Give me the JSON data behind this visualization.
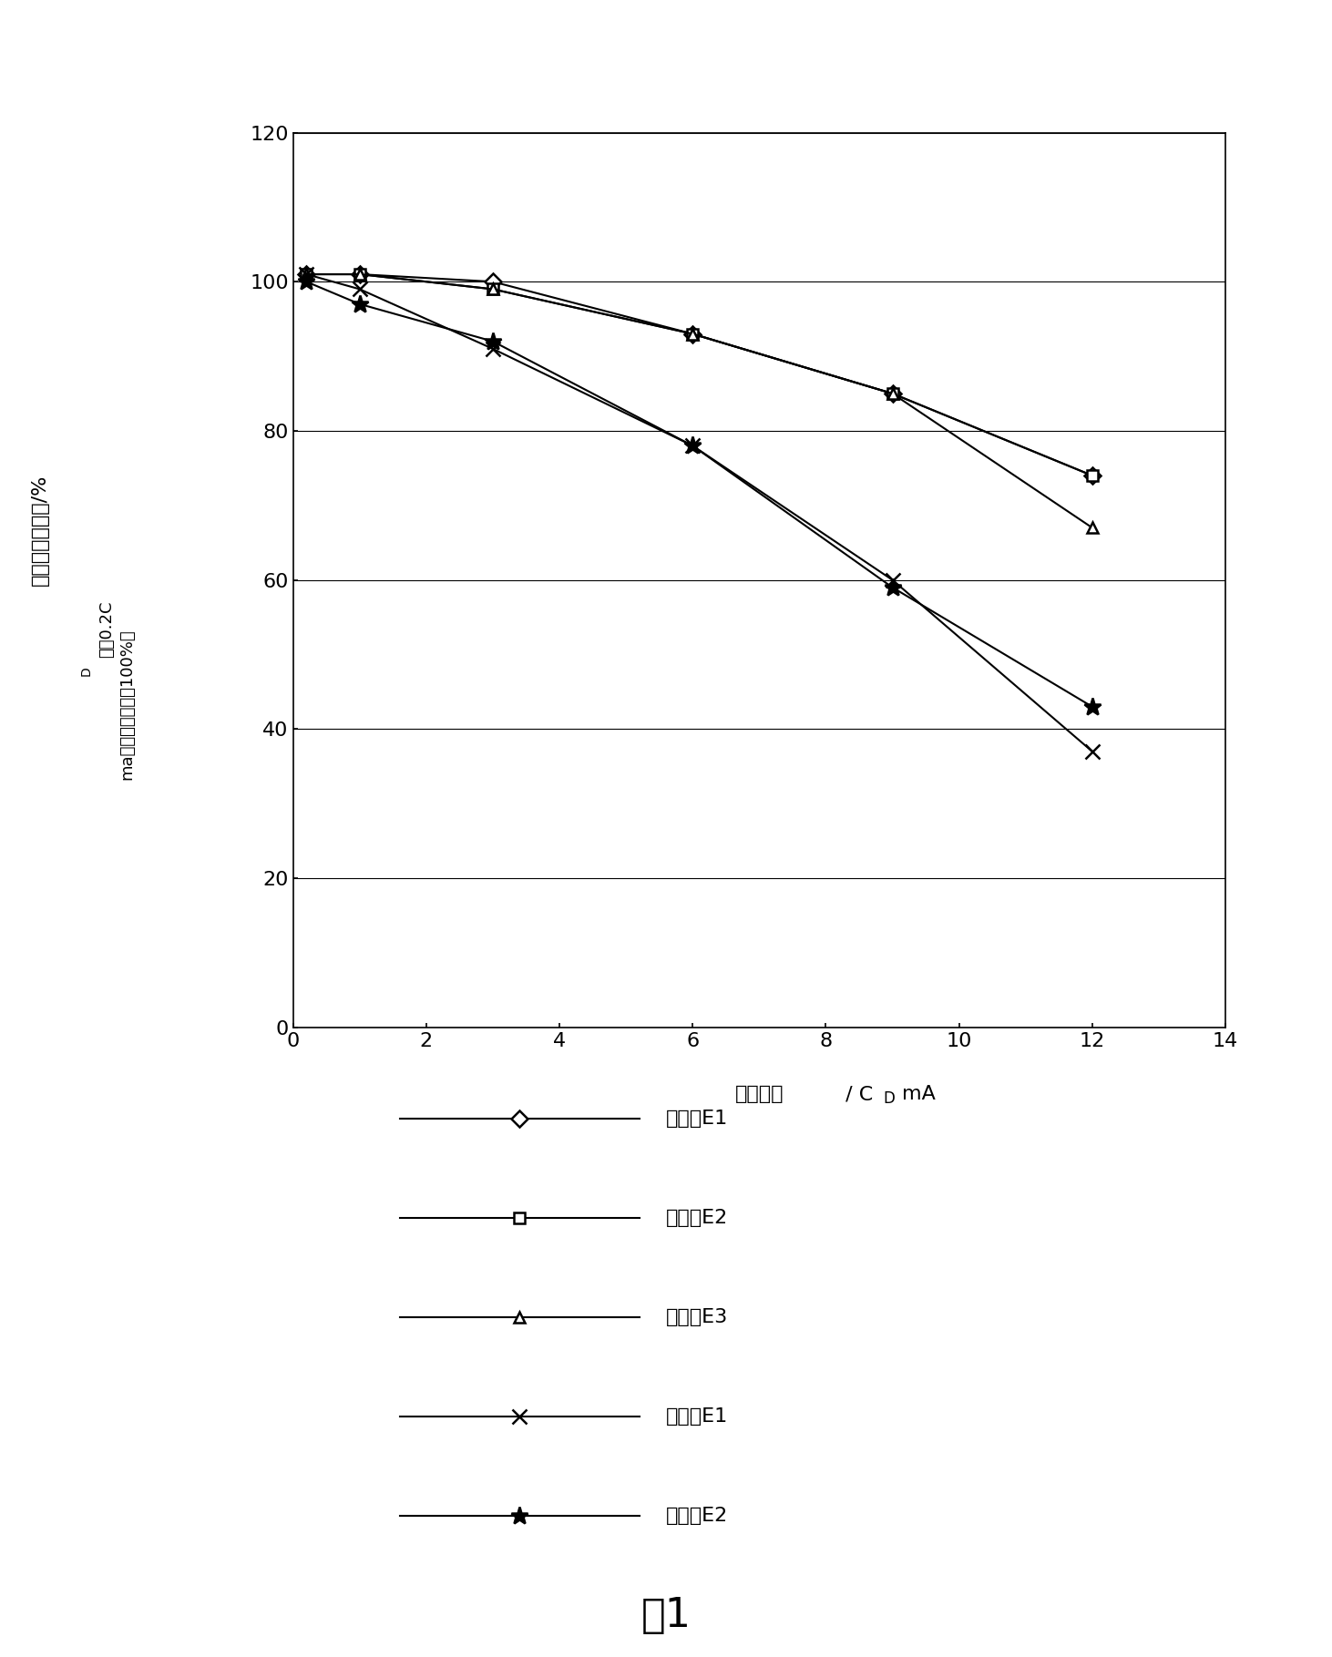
{
  "series": [
    {
      "label": "实施例E1",
      "x": [
        0.2,
        1,
        3,
        6,
        9,
        12
      ],
      "y": [
        101,
        101,
        100,
        93,
        85,
        74
      ],
      "marker": "D",
      "markersize": 9,
      "color": "#000000",
      "linewidth": 1.5,
      "mfc": "white"
    },
    {
      "label": "实施例E2",
      "x": [
        0.2,
        1,
        3,
        6,
        9,
        12
      ],
      "y": [
        101,
        101,
        99,
        93,
        85,
        74
      ],
      "marker": "s",
      "markersize": 9,
      "color": "#000000",
      "linewidth": 1.5,
      "mfc": "white"
    },
    {
      "label": "实施例E3",
      "x": [
        0.2,
        1,
        3,
        6,
        9,
        12
      ],
      "y": [
        101,
        101,
        99,
        93,
        85,
        67
      ],
      "marker": "^",
      "markersize": 9,
      "color": "#000000",
      "linewidth": 1.5,
      "mfc": "white"
    },
    {
      "label": "对比例E1",
      "x": [
        0.2,
        1,
        3,
        6,
        9,
        12
      ],
      "y": [
        101,
        99,
        91,
        78,
        60,
        37
      ],
      "marker": "x",
      "markersize": 12,
      "color": "#000000",
      "linewidth": 1.5,
      "mfc": "black"
    },
    {
      "label": "对比例E2",
      "x": [
        0.2,
        1,
        3,
        6,
        9,
        12
      ],
      "y": [
        100,
        97,
        92,
        78,
        59,
        43
      ],
      "marker": "*",
      "markersize": 14,
      "color": "#000000",
      "linewidth": 1.5,
      "mfc": "black"
    }
  ],
  "xlabel_cn": "放电电流",
  "xlabel_en": " / C",
  "xlabel_sub": "D",
  "xlabel_end": "mA",
  "ylabel_line1": "放电容量百分比/%",
  "ylabel_line2": "（儇0.2C",
  "ylabel_line2_sub": "D",
  "ylabel_line2_end": "ma时放电容量作为100%）",
  "xlim": [
    0,
    14
  ],
  "ylim": [
    0,
    120
  ],
  "xticks": [
    0,
    2,
    4,
    6,
    8,
    10,
    12,
    14
  ],
  "yticks": [
    0,
    20,
    40,
    60,
    80,
    100,
    120
  ],
  "figure_caption": "图1",
  "background_color": "#ffffff"
}
